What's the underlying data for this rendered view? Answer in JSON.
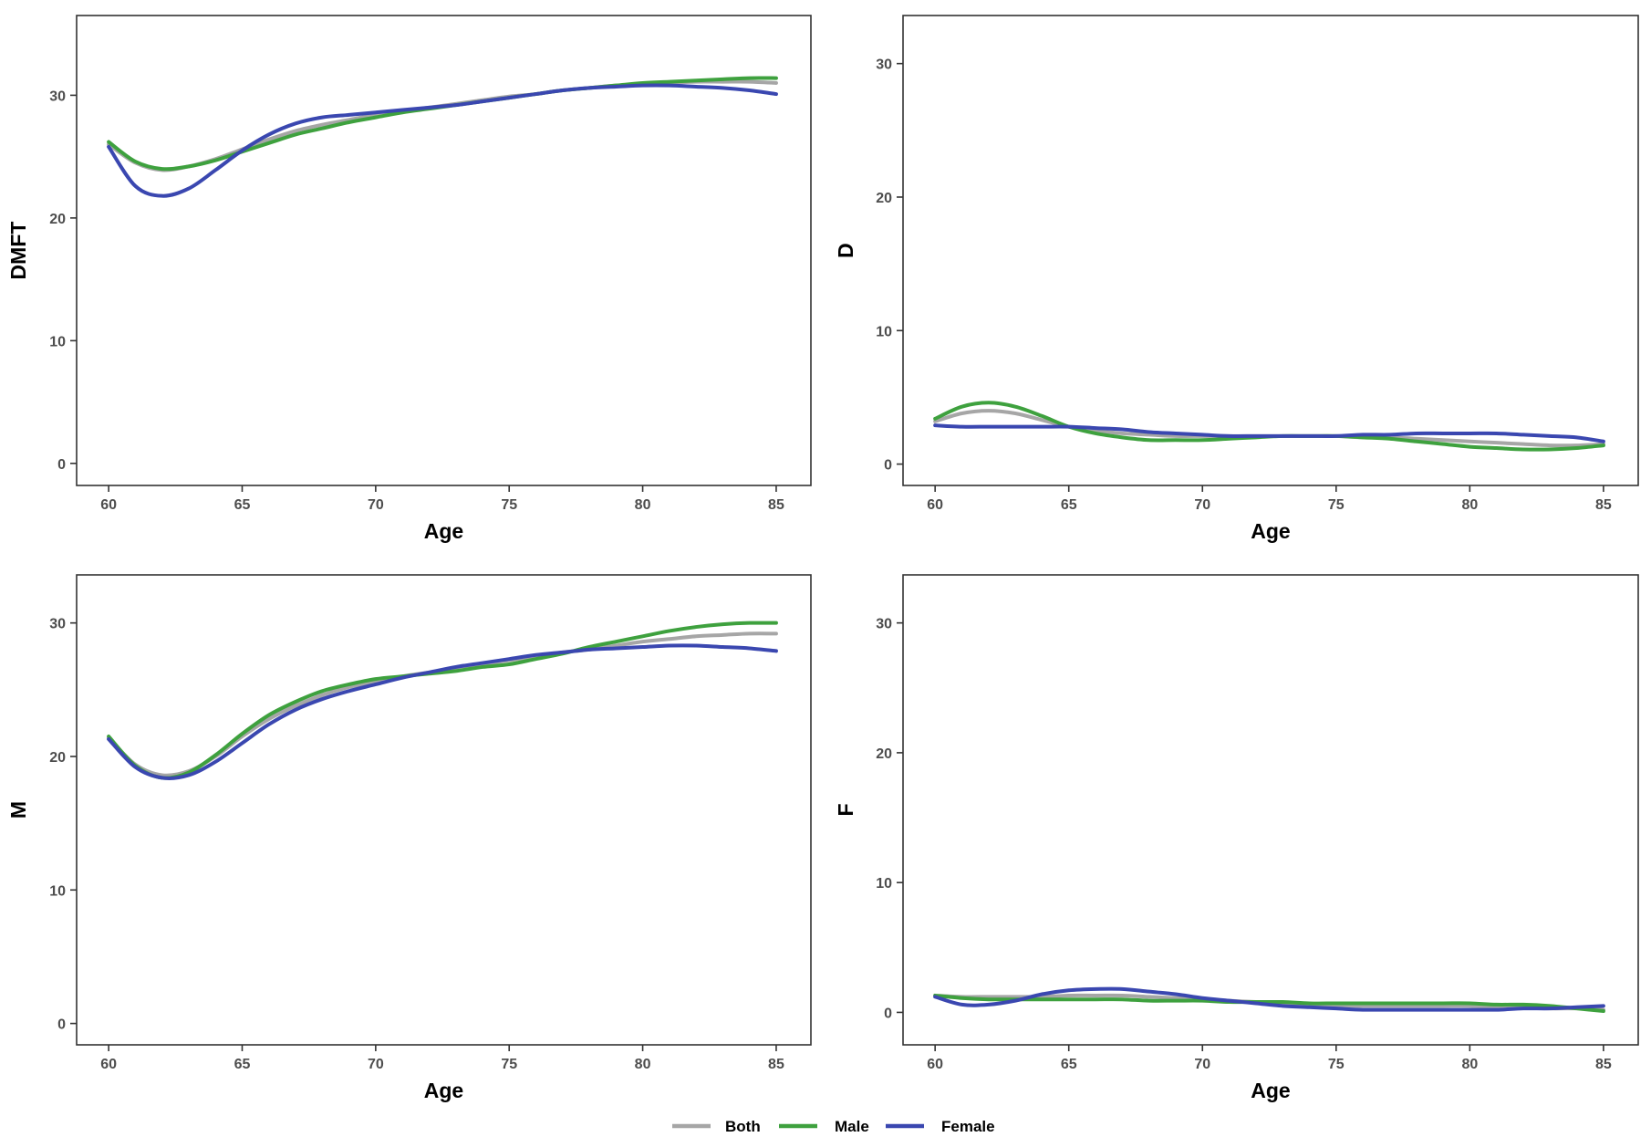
{
  "legend": [
    {
      "name": "Both",
      "color": "#a6a6a6"
    },
    {
      "name": "Male",
      "color": "#3ea13e"
    },
    {
      "name": "Female",
      "color": "#3a47b0"
    }
  ],
  "chart_data": [
    {
      "type": "line",
      "title": "",
      "xlabel": "Age",
      "ylabel": "DMFT",
      "xlim": [
        58.8,
        86.3
      ],
      "ylim": [
        -1.8,
        36.5
      ],
      "xticks": [
        60,
        65,
        70,
        75,
        80,
        85
      ],
      "yticks": [
        0,
        10,
        20,
        30
      ],
      "grid": false,
      "series": [
        {
          "name": "Both",
          "x": [
            60,
            61,
            62,
            63,
            64,
            65,
            66,
            67,
            68,
            69,
            70,
            71,
            72,
            73,
            74,
            75,
            76,
            77,
            78,
            79,
            80,
            81,
            82,
            83,
            84,
            85
          ],
          "values": [
            26.0,
            24.5,
            23.9,
            24.2,
            24.8,
            25.6,
            26.4,
            27.1,
            27.6,
            28.0,
            28.4,
            28.7,
            29.0,
            29.3,
            29.6,
            29.9,
            30.1,
            30.4,
            30.6,
            30.8,
            30.9,
            31.0,
            31.1,
            31.1,
            31.1,
            31.0
          ]
        },
        {
          "name": "Male",
          "x": [
            60,
            61,
            62,
            63,
            64,
            65,
            66,
            67,
            68,
            69,
            70,
            71,
            72,
            73,
            74,
            75,
            76,
            77,
            78,
            79,
            80,
            81,
            82,
            83,
            84,
            85
          ],
          "values": [
            26.2,
            24.6,
            24.0,
            24.2,
            24.7,
            25.4,
            26.1,
            26.8,
            27.3,
            27.8,
            28.2,
            28.6,
            28.9,
            29.2,
            29.5,
            29.8,
            30.1,
            30.4,
            30.6,
            30.8,
            31.0,
            31.1,
            31.2,
            31.3,
            31.4,
            31.4
          ]
        },
        {
          "name": "Female",
          "x": [
            60,
            61,
            62,
            63,
            64,
            65,
            66,
            67,
            68,
            69,
            70,
            71,
            72,
            73,
            74,
            75,
            76,
            77,
            78,
            79,
            80,
            81,
            82,
            83,
            84,
            85
          ],
          "values": [
            25.8,
            22.6,
            21.8,
            22.4,
            23.9,
            25.5,
            26.8,
            27.7,
            28.2,
            28.4,
            28.6,
            28.8,
            29.0,
            29.2,
            29.5,
            29.8,
            30.1,
            30.4,
            30.6,
            30.7,
            30.8,
            30.8,
            30.7,
            30.6,
            30.4,
            30.1
          ]
        }
      ]
    },
    {
      "type": "line",
      "title": "",
      "xlabel": "Age",
      "ylabel": "D",
      "xlim": [
        58.8,
        86.3
      ],
      "ylim": [
        -1.6,
        33.6
      ],
      "xticks": [
        60,
        65,
        70,
        75,
        80,
        85
      ],
      "yticks": [
        0,
        10,
        20,
        30
      ],
      "grid": false,
      "series": [
        {
          "name": "Both",
          "x": [
            60,
            61,
            62,
            63,
            64,
            65,
            66,
            67,
            68,
            69,
            70,
            71,
            72,
            73,
            74,
            75,
            76,
            77,
            78,
            79,
            80,
            81,
            82,
            83,
            84,
            85
          ],
          "values": [
            3.2,
            3.8,
            4.0,
            3.8,
            3.3,
            2.8,
            2.5,
            2.3,
            2.2,
            2.1,
            2.1,
            2.1,
            2.1,
            2.1,
            2.1,
            2.1,
            2.0,
            2.0,
            1.9,
            1.8,
            1.7,
            1.6,
            1.5,
            1.4,
            1.4,
            1.5
          ]
        },
        {
          "name": "Male",
          "x": [
            60,
            61,
            62,
            63,
            64,
            65,
            66,
            67,
            68,
            69,
            70,
            71,
            72,
            73,
            74,
            75,
            76,
            77,
            78,
            79,
            80,
            81,
            82,
            83,
            84,
            85
          ],
          "values": [
            3.4,
            4.3,
            4.6,
            4.3,
            3.6,
            2.8,
            2.3,
            2.0,
            1.8,
            1.8,
            1.8,
            1.9,
            2.0,
            2.1,
            2.1,
            2.1,
            2.0,
            1.9,
            1.7,
            1.5,
            1.3,
            1.2,
            1.1,
            1.1,
            1.2,
            1.4
          ]
        },
        {
          "name": "Female",
          "x": [
            60,
            61,
            62,
            63,
            64,
            65,
            66,
            67,
            68,
            69,
            70,
            71,
            72,
            73,
            74,
            75,
            76,
            77,
            78,
            79,
            80,
            81,
            82,
            83,
            84,
            85
          ],
          "values": [
            2.9,
            2.8,
            2.8,
            2.8,
            2.8,
            2.8,
            2.7,
            2.6,
            2.4,
            2.3,
            2.2,
            2.1,
            2.1,
            2.1,
            2.1,
            2.1,
            2.2,
            2.2,
            2.3,
            2.3,
            2.3,
            2.3,
            2.2,
            2.1,
            2.0,
            1.7
          ]
        }
      ]
    },
    {
      "type": "line",
      "title": "",
      "xlabel": "Age",
      "ylabel": "M",
      "xlim": [
        58.8,
        86.3
      ],
      "ylim": [
        -1.6,
        33.6
      ],
      "xticks": [
        60,
        65,
        70,
        75,
        80,
        85
      ],
      "yticks": [
        0,
        10,
        20,
        30
      ],
      "grid": false,
      "series": [
        {
          "name": "Both",
          "x": [
            60,
            61,
            62,
            63,
            64,
            65,
            66,
            67,
            68,
            69,
            70,
            71,
            72,
            73,
            74,
            75,
            76,
            77,
            78,
            79,
            80,
            81,
            82,
            83,
            84,
            85
          ],
          "values": [
            21.4,
            19.4,
            18.6,
            18.9,
            20.0,
            21.5,
            22.8,
            23.8,
            24.6,
            25.2,
            25.6,
            26.0,
            26.3,
            26.6,
            26.9,
            27.2,
            27.5,
            27.8,
            28.0,
            28.3,
            28.6,
            28.8,
            29.0,
            29.1,
            29.2,
            29.2
          ]
        },
        {
          "name": "Male",
          "x": [
            60,
            61,
            62,
            63,
            64,
            65,
            66,
            67,
            68,
            69,
            70,
            71,
            72,
            73,
            74,
            75,
            76,
            77,
            78,
            79,
            80,
            81,
            82,
            83,
            84,
            85
          ],
          "values": [
            21.5,
            19.3,
            18.4,
            18.8,
            20.1,
            21.7,
            23.1,
            24.1,
            24.9,
            25.4,
            25.8,
            26.0,
            26.2,
            26.4,
            26.7,
            26.9,
            27.3,
            27.7,
            28.2,
            28.6,
            29.0,
            29.4,
            29.7,
            29.9,
            30.0,
            30.0
          ]
        },
        {
          "name": "Female",
          "x": [
            60,
            61,
            62,
            63,
            64,
            65,
            66,
            67,
            68,
            69,
            70,
            71,
            72,
            73,
            74,
            75,
            76,
            77,
            78,
            79,
            80,
            81,
            82,
            83,
            84,
            85
          ],
          "values": [
            21.3,
            19.2,
            18.4,
            18.6,
            19.6,
            21.0,
            22.4,
            23.5,
            24.3,
            24.9,
            25.4,
            25.9,
            26.3,
            26.7,
            27.0,
            27.3,
            27.6,
            27.8,
            28.0,
            28.1,
            28.2,
            28.3,
            28.3,
            28.2,
            28.1,
            27.9
          ]
        }
      ]
    },
    {
      "type": "line",
      "title": "",
      "xlabel": "Age",
      "ylabel": "F",
      "xlim": [
        58.8,
        86.3
      ],
      "ylim": [
        -2.5,
        33.7
      ],
      "xticks": [
        60,
        65,
        70,
        75,
        80,
        85
      ],
      "yticks": [
        0,
        10,
        20,
        30
      ],
      "grid": false,
      "series": [
        {
          "name": "Both",
          "x": [
            60,
            61,
            62,
            63,
            64,
            65,
            66,
            67,
            68,
            69,
            70,
            71,
            72,
            73,
            74,
            75,
            76,
            77,
            78,
            79,
            80,
            81,
            82,
            83,
            84,
            85
          ],
          "values": [
            1.3,
            1.2,
            1.2,
            1.2,
            1.2,
            1.3,
            1.3,
            1.3,
            1.2,
            1.1,
            1.0,
            0.9,
            0.8,
            0.7,
            0.6,
            0.5,
            0.5,
            0.5,
            0.5,
            0.5,
            0.5,
            0.4,
            0.4,
            0.3,
            0.3,
            0.2
          ]
        },
        {
          "name": "Male",
          "x": [
            60,
            61,
            62,
            63,
            64,
            65,
            66,
            67,
            68,
            69,
            70,
            71,
            72,
            73,
            74,
            75,
            76,
            77,
            78,
            79,
            80,
            81,
            82,
            83,
            84,
            85
          ],
          "values": [
            1.3,
            1.1,
            1.0,
            1.0,
            1.0,
            1.0,
            1.0,
            1.0,
            0.9,
            0.9,
            0.9,
            0.8,
            0.8,
            0.8,
            0.7,
            0.7,
            0.7,
            0.7,
            0.7,
            0.7,
            0.7,
            0.6,
            0.6,
            0.5,
            0.3,
            0.1
          ]
        },
        {
          "name": "Female",
          "x": [
            60,
            61,
            62,
            63,
            64,
            65,
            66,
            67,
            68,
            69,
            70,
            71,
            72,
            73,
            74,
            75,
            76,
            77,
            78,
            79,
            80,
            81,
            82,
            83,
            84,
            85
          ],
          "values": [
            1.2,
            0.6,
            0.6,
            0.9,
            1.4,
            1.7,
            1.8,
            1.8,
            1.6,
            1.4,
            1.1,
            0.9,
            0.7,
            0.5,
            0.4,
            0.3,
            0.2,
            0.2,
            0.2,
            0.2,
            0.2,
            0.2,
            0.3,
            0.3,
            0.4,
            0.5
          ]
        }
      ]
    }
  ]
}
